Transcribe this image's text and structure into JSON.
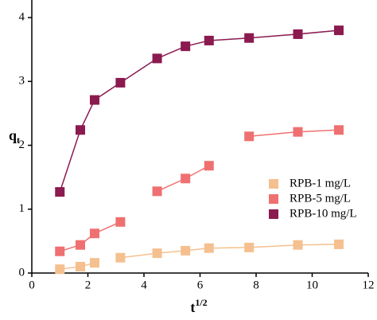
{
  "chart_data": {
    "type": "line",
    "x_label": "t",
    "x_label_sup": "1/2",
    "y_label": "q",
    "y_label_sub": "t",
    "x": [
      1,
      1.73,
      2.24,
      3.16,
      4.47,
      5.48,
      6.32,
      7.75,
      9.49,
      10.95
    ],
    "series": [
      {
        "name": "RPB-1 mg/L",
        "color": "#f5c08f",
        "line_breaks": [
          3
        ],
        "values": [
          0.06,
          0.1,
          0.16,
          0.24,
          0.31,
          0.35,
          0.39,
          0.4,
          0.44,
          0.45
        ]
      },
      {
        "name": "RPB-5 mg/L",
        "color": "#ef7070",
        "line_breaks": [
          4,
          7
        ],
        "values": [
          0.34,
          0.44,
          0.62,
          0.8,
          1.28,
          1.48,
          1.68,
          2.14,
          2.21,
          2.24
        ]
      },
      {
        "name": "RPB-10 mg/L",
        "color": "#8b1a4f",
        "line_breaks": [],
        "values": [
          1.27,
          2.24,
          2.71,
          2.98,
          3.36,
          3.55,
          3.64,
          3.68,
          3.74,
          3.8
        ]
      }
    ],
    "xlim": [
      0,
      12
    ],
    "xticks": [
      0,
      2,
      4,
      6,
      8,
      10,
      12
    ],
    "ylim": [
      0,
      4.25
    ],
    "yticks": [
      0,
      1,
      2,
      3,
      4
    ],
    "legend": "center-right"
  }
}
